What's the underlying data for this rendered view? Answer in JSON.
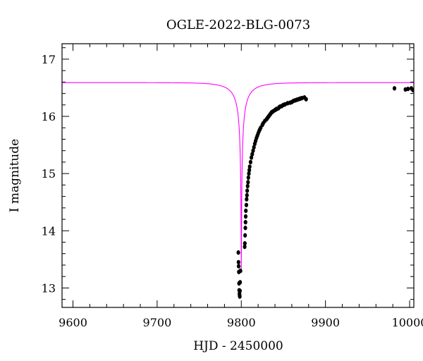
{
  "chart_data": {
    "type": "scatter",
    "title": "OGLE-2022-BLG-0073",
    "xlabel": "HJD - 2450000",
    "ylabel": "I magnitude",
    "xlim": [
      9587,
      10005
    ],
    "ylim": [
      17.27,
      12.66
    ],
    "y_inverted": true,
    "x_ticks": [
      9600,
      9700,
      9800,
      9900,
      10000
    ],
    "x_tick_labels": [
      "9600",
      "9700",
      "9800",
      "9900",
      "10000"
    ],
    "y_ticks": [
      13,
      14,
      15,
      16,
      17
    ],
    "y_tick_labels": [
      "13",
      "14",
      "15",
      "16",
      "17"
    ],
    "model": {
      "color": "#ff00ff",
      "t0": 9800.0,
      "u0": 0.005,
      "tE": 30.0,
      "baseline_mag": 16.59,
      "fs_fraction": 0.1
    },
    "points": {
      "color": "#000000",
      "x": [
        9796.5,
        9796.7,
        9796.9,
        9797.1,
        9797.3,
        9797.5,
        9797.8,
        9798.0,
        9798.2,
        9798.4,
        9798.6,
        9799.0,
        9804.0,
        9804.2,
        9804.5,
        9804.8,
        9805.0,
        9805.2,
        9805.4,
        9806.0,
        9806.3,
        9806.7,
        9807.0,
        9807.5,
        9808.0,
        9808.4,
        9809.0,
        9809.5,
        9810.0,
        9811.0,
        9812.0,
        9813.0,
        9814.0,
        9815.0,
        9816.0,
        9817.0,
        9818.0,
        9819.0,
        9820.0,
        9821.0,
        9822.0,
        9823.0,
        9825.0,
        9826.0,
        9828.0,
        9830.0,
        9831.0,
        9832.0,
        9833.0,
        9834.0,
        9835.0,
        9836.0,
        9837.0,
        9838.0,
        9840.0,
        9841.0,
        9842.0,
        9844.0,
        9845.0,
        9846.0,
        9848.0,
        9850.0,
        9852.0,
        9855.0,
        9858.0,
        9860.0,
        9862.0,
        9864.0,
        9866.0,
        9868.0,
        9870.0,
        9872.0,
        9875.0,
        9877.0,
        9982.0,
        9995.0,
        9998.0,
        10002.0,
        10004.0
      ],
      "y": [
        13.62,
        13.45,
        13.38,
        13.28,
        13.08,
        12.96,
        12.9,
        12.87,
        12.85,
        12.95,
        13.1,
        13.3,
        13.72,
        13.78,
        13.92,
        14.05,
        14.15,
        14.25,
        14.35,
        14.45,
        14.55,
        14.62,
        14.7,
        14.78,
        14.85,
        14.93,
        15.0,
        15.06,
        15.12,
        15.2,
        15.28,
        15.34,
        15.4,
        15.46,
        15.52,
        15.57,
        15.62,
        15.66,
        15.7,
        15.74,
        15.77,
        15.8,
        15.85,
        15.88,
        15.92,
        15.95,
        15.97,
        15.99,
        16.01,
        16.03,
        16.05,
        16.07,
        16.08,
        16.09,
        16.11,
        16.12,
        16.13,
        16.14,
        16.16,
        16.17,
        16.18,
        16.2,
        16.21,
        16.23,
        16.24,
        16.25,
        16.27,
        16.28,
        16.29,
        16.3,
        16.31,
        16.32,
        16.33,
        16.3,
        16.49,
        16.47,
        16.48,
        16.49,
        16.46
      ]
    }
  }
}
